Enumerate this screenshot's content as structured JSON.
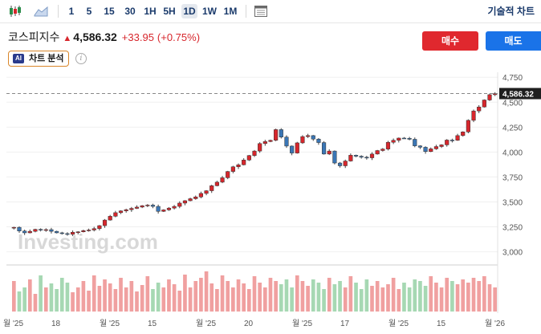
{
  "toolbar": {
    "chart_type_icons": [
      "candlestick-icon",
      "area-chart-icon"
    ],
    "intervals": [
      "1",
      "5",
      "15",
      "30",
      "1H",
      "5H",
      "1D",
      "1W",
      "1M"
    ],
    "active_interval": "1D",
    "calendar_icon": "calendar-icon",
    "technical_chart_label": "기술적 차트"
  },
  "quote": {
    "name": "코스피지수",
    "arrow": "▲",
    "price": "4,586.32",
    "change": "+33.95",
    "change_pct": "(+0.75%)"
  },
  "buttons": {
    "buy": "매수",
    "sell": "매도"
  },
  "ai_analysis": {
    "badge": "AI",
    "label": "차트 분석"
  },
  "info_icon": "info-icon",
  "watermark": "Investing.com",
  "colors": {
    "up": "#d7262c",
    "down": "#3a76b5",
    "vol_up": "#f0a0a0",
    "vol_down": "#a6d8b3",
    "buy": "#e0282e",
    "sell": "#1a73e8"
  },
  "chart_data": {
    "type": "candlestick",
    "price_axis_ticks": [
      "4,750",
      "4,500",
      "4,250",
      "4,000",
      "3,750",
      "3,500",
      "3,250",
      "3,000"
    ],
    "price_axis_values": [
      4750,
      4500,
      4250,
      4000,
      3750,
      3500,
      3250,
      3000
    ],
    "ylim": [
      2900,
      4800
    ],
    "last_price_label": "4,586.32",
    "last_price": 4586.32,
    "x_tick_labels": [
      "월 '25",
      "18",
      "월 '25",
      "15",
      "월 '25",
      "20",
      "월 '25",
      "17",
      "월 '25",
      "15",
      "월 '26"
    ],
    "closes": [
      3245,
      3208,
      3190,
      3205,
      3225,
      3218,
      3222,
      3205,
      3190,
      3182,
      3175,
      3196,
      3200,
      3212,
      3218,
      3232,
      3262,
      3318,
      3356,
      3392,
      3410,
      3422,
      3435,
      3448,
      3462,
      3468,
      3455,
      3405,
      3420,
      3438,
      3455,
      3488,
      3512,
      3532,
      3550,
      3585,
      3612,
      3662,
      3698,
      3742,
      3805,
      3852,
      3872,
      3920,
      3965,
      4010,
      4085,
      4105,
      4118,
      4225,
      4150,
      4060,
      3990,
      4092,
      4155,
      4165,
      4130,
      4095,
      3980,
      4010,
      3890,
      3862,
      3910,
      3968,
      3958,
      3948,
      3942,
      3980,
      4015,
      4030,
      4098,
      4118,
      4140,
      4138,
      4128,
      4062,
      4048,
      4005,
      4032,
      4055,
      4072,
      4120,
      4118,
      4165,
      4202,
      4318,
      4412,
      4452,
      4522,
      4575,
      4586
    ],
    "volumes": [
      38,
      25,
      30,
      40,
      22,
      45,
      30,
      35,
      28,
      42,
      36,
      24,
      30,
      38,
      26,
      45,
      32,
      40,
      35,
      28,
      42,
      30,
      38,
      25,
      33,
      44,
      28,
      36,
      30,
      40,
      34,
      26,
      46,
      30,
      38,
      42,
      50,
      35,
      28,
      45,
      38,
      30,
      40,
      35,
      28,
      44,
      36,
      30,
      42,
      38,
      34,
      40,
      30,
      45,
      38,
      32,
      40,
      36,
      28,
      42,
      34,
      38,
      30,
      44,
      36,
      28,
      40,
      32,
      38,
      30,
      34,
      42,
      28,
      36,
      30,
      40,
      38,
      32,
      44,
      36,
      30,
      42,
      38,
      34,
      40,
      36,
      42,
      38,
      44,
      34,
      30
    ]
  }
}
